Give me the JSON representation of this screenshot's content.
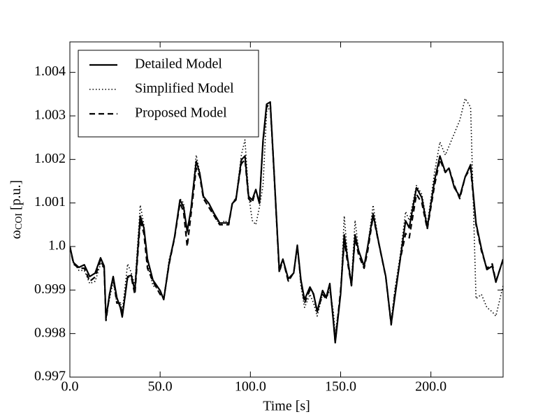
{
  "chart_data": {
    "type": "line",
    "x_label": "Time [s]",
    "y_label": {
      "symbol": "ω",
      "subscript": "COI",
      "unit": "[p.u.]"
    },
    "x": [
      0,
      2,
      5,
      8,
      11,
      14,
      17,
      19,
      20,
      22,
      24,
      26,
      28,
      29,
      32,
      34,
      36,
      39,
      41,
      43,
      46,
      50,
      52,
      55,
      58,
      61,
      63,
      65,
      67,
      70,
      72,
      74,
      77,
      80,
      83,
      86,
      88,
      90,
      92,
      95,
      97,
      99,
      101,
      103,
      105,
      107,
      109,
      111,
      113,
      116,
      118,
      121,
      124,
      126,
      128,
      130,
      133,
      135,
      137,
      140,
      142,
      144,
      146,
      147,
      150,
      152,
      154,
      156,
      158,
      160,
      163,
      165,
      168,
      171,
      175,
      178,
      180,
      183,
      186,
      188,
      192,
      195,
      198,
      202,
      205,
      208,
      210,
      213,
      216,
      219,
      222,
      225,
      228,
      231,
      234,
      236,
      240
    ],
    "series": [
      {
        "name": "Detailed Model",
        "color": "#000000",
        "dash": "solid",
        "width": 2.2,
        "values": [
          1.0,
          0.99963,
          0.99952,
          0.99958,
          0.99931,
          0.99939,
          0.99974,
          0.99955,
          0.99835,
          0.99891,
          0.99931,
          0.99883,
          0.99859,
          0.99838,
          0.99931,
          0.99934,
          0.99899,
          1.0007,
          1.00043,
          0.99971,
          0.99923,
          0.99899,
          0.99878,
          0.99963,
          1.00022,
          1.00107,
          1.00091,
          1.00035,
          1.00083,
          1.00196,
          1.00167,
          1.00115,
          1.00099,
          1.00075,
          1.00054,
          1.00054,
          1.00054,
          1.00099,
          1.00107,
          1.00199,
          1.00208,
          1.00115,
          1.00107,
          1.00131,
          1.00099,
          1.00244,
          1.00327,
          1.00332,
          1.0018,
          0.99947,
          0.99971,
          0.99926,
          0.99939,
          1.00003,
          0.99923,
          0.99878,
          0.99907,
          0.99891,
          0.99851,
          0.99899,
          0.99883,
          0.99915,
          0.99827,
          0.99779,
          0.99891,
          1.00027,
          0.99968,
          0.9991,
          1.00027,
          0.9999,
          0.99955,
          1.0,
          1.00075,
          1.00011,
          0.99931,
          0.99822,
          0.99883,
          0.99971,
          1.00059,
          1.00043,
          1.00135,
          1.00112,
          1.00043,
          1.00151,
          1.00208,
          1.00171,
          1.0018,
          1.00135,
          1.00115,
          1.0016,
          1.00188,
          1.00054,
          0.99995,
          0.99947,
          0.99955,
          0.99918,
          0.99971
        ]
      },
      {
        "name": "Simplified Model",
        "color": "#000000",
        "dash": "dotted",
        "width": 1.6,
        "values": [
          1.0,
          0.99965,
          0.99945,
          0.99945,
          0.99915,
          0.9992,
          0.9996,
          0.9995,
          0.9984,
          0.9988,
          0.9992,
          0.9987,
          0.9987,
          0.9985,
          0.9996,
          0.9994,
          0.9991,
          1.00095,
          1.0005,
          0.9996,
          0.9991,
          0.999,
          0.9988,
          0.9997,
          1.0002,
          1.0011,
          1.001,
          1.0003,
          1.0008,
          1.0021,
          1.0017,
          1.0011,
          1.001,
          1.0007,
          1.0005,
          1.0006,
          1.0005,
          1.001,
          1.0011,
          1.0021,
          1.00245,
          1.0012,
          1.0006,
          1.0005,
          1.0009,
          1.0014,
          1.0031,
          1.0032,
          1.0017,
          0.9994,
          0.9997,
          0.9992,
          0.9994,
          1.0,
          0.9991,
          0.9986,
          0.9989,
          0.9987,
          0.9984,
          0.9989,
          0.9988,
          0.999,
          0.9985,
          0.998,
          0.9989,
          1.0007,
          0.9997,
          0.9992,
          1.0006,
          0.9999,
          0.9995,
          1.0,
          1.00095,
          1.0001,
          0.9993,
          0.9983,
          0.999,
          0.9998,
          1.0008,
          1.0006,
          1.0014,
          1.0012,
          1.0005,
          1.0017,
          1.0024,
          1.0021,
          1.0023,
          1.0026,
          1.0029,
          1.0034,
          1.0032,
          0.9988,
          0.9989,
          0.9986,
          0.9985,
          0.9984,
          0.9991
        ]
      },
      {
        "name": "Proposed Model",
        "color": "#000000",
        "dash": "dashed",
        "width": 2.2,
        "values": [
          1.0,
          0.9996,
          0.9995,
          0.9995,
          0.9992,
          0.9993,
          0.9997,
          0.9995,
          0.9983,
          0.9989,
          0.9993,
          0.9987,
          0.9987,
          0.9984,
          0.9993,
          0.9993,
          0.9989,
          1.0006,
          1.0003,
          0.9995,
          0.9992,
          0.9989,
          0.9988,
          0.9996,
          1.0002,
          1.001,
          1.0008,
          1.0,
          1.0007,
          1.0018,
          1.0016,
          1.0011,
          1.0009,
          1.0007,
          1.0005,
          1.0005,
          1.0005,
          1.001,
          1.0011,
          1.0019,
          1.002,
          1.0011,
          1.001,
          1.0013,
          1.001,
          1.0024,
          1.0032,
          1.0033,
          1.0018,
          0.9994,
          0.9997,
          0.9992,
          0.9994,
          1.0,
          0.9992,
          0.9987,
          0.999,
          0.9989,
          0.9985,
          0.9989,
          0.9988,
          0.9991,
          0.9983,
          0.9978,
          0.999,
          1.0001,
          0.9996,
          0.9991,
          1.0002,
          0.9998,
          0.9995,
          0.9999,
          1.0007,
          1.0001,
          0.9993,
          0.9982,
          0.9989,
          0.9997,
          1.0003,
          1.0002,
          1.0012,
          1.001,
          1.0004,
          1.0014,
          1.002,
          1.0017,
          1.0018,
          1.0014,
          1.0011,
          1.0016,
          1.0018,
          1.0005,
          0.9999,
          0.9995,
          0.9996,
          0.9992,
          0.9997
        ]
      }
    ],
    "xlim": [
      0,
      240
    ],
    "ylim": [
      0.997,
      1.0047
    ],
    "xticks": [
      {
        "value": 0,
        "label": "0.0"
      },
      {
        "value": 50,
        "label": "50.0"
      },
      {
        "value": 100,
        "label": "100.0"
      },
      {
        "value": 150,
        "label": "150.0"
      },
      {
        "value": 200,
        "label": "200.0"
      }
    ],
    "yticks": [
      0.997,
      0.998,
      0.999,
      {
        "value": 1,
        "label": "1.0"
      },
      1.001,
      1.002,
      1.003,
      1.004
    ],
    "grid": false,
    "legend": "upper-left"
  }
}
